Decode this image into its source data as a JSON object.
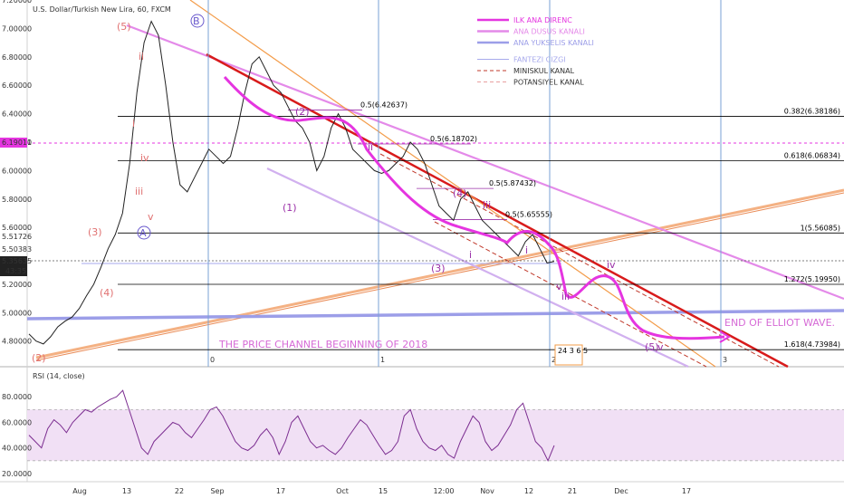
{
  "header": {
    "symbol_title": "U.S. Dollar/Turkish New Lira, 60, FXCM"
  },
  "rsi": {
    "label": "RSI (14, close)",
    "ticks": [
      "80.0000",
      "60.0000",
      "40.0000",
      "20.0000"
    ],
    "tick_values": [
      80,
      60,
      40,
      20
    ],
    "band": [
      30,
      70
    ],
    "range": [
      15,
      100
    ]
  },
  "legend": [
    {
      "label": "ILK ANA DIRENC",
      "color": "#e535e0"
    },
    {
      "label": "ANA DUSUS KANALI",
      "color": "#e48ae9"
    },
    {
      "label": "ANA YUKSELIS KANALI",
      "color": "#9c9ee8"
    },
    {
      "label": "FANTEZI CIZGI",
      "color": "#a7a9ec"
    },
    {
      "label": "MINISKUL KANAL",
      "color": "#c0392b"
    },
    {
      "label": "POTANSIYEL KANAL",
      "color": "#e8a0a0"
    }
  ],
  "annotations": {
    "channel_text": "THE PRICE CHANNEL BEGINNING OF 2018",
    "end_text": "END OF ELLIOT WAVE.",
    "mini_box": "24 3 6 5",
    "wave_labels": [
      "(5)",
      "B",
      "ii",
      "i",
      "iv",
      "iii",
      "v",
      "(3)",
      "A",
      "(4)",
      "(2)",
      "(1)",
      "(2)",
      "(3)",
      "i",
      "iii",
      "(4)",
      "iv",
      "(5)",
      "v",
      "ii",
      "v",
      "iii",
      "i"
    ]
  },
  "price_badges": {
    "current_a": "6.19011",
    "b1": "5.51726",
    "b2": "5.50383",
    "current": "5.35635",
    "countdown": "43:35"
  },
  "chart_data": {
    "type": "line",
    "symbol": "USDTRY",
    "interval": "60",
    "x_tick_labels": [
      "Aug",
      "13",
      "22",
      "Sep",
      "17",
      "Oct",
      "15",
      "12:00",
      "Nov",
      "12",
      "21",
      "Dec",
      "17"
    ],
    "y_ticks": [
      "7.20000",
      "7.00000",
      "6.80000",
      "6.60000",
      "6.40000",
      "6.20000",
      "6.00000",
      "5.80000",
      "5.60000",
      "5.20000",
      "5.00000",
      "4.80000"
    ],
    "y_tick_values": [
      7.2,
      7.0,
      6.8,
      6.6,
      6.4,
      6.2,
      6.0,
      5.8,
      5.6,
      5.2,
      5.0,
      4.8
    ],
    "ylim": [
      4.62,
      7.2
    ],
    "fib_levels": [
      {
        "label": "0.382(6.38186)",
        "value": 6.38186
      },
      {
        "label": "0.618(6.06834)",
        "value": 6.06834
      },
      {
        "label": "1(5.56085)",
        "value": 5.56085
      },
      {
        "label": "1.272(5.19950)",
        "value": 5.1995
      },
      {
        "label": "1.618(4.73984)",
        "value": 4.73984
      }
    ],
    "fib_labels_mid": [
      {
        "label": "0.5(6.42637)",
        "value": 6.42637
      },
      {
        "label": "0.5(6.18702)",
        "value": 6.18702
      },
      {
        "label": "0.5(5.87432)",
        "value": 5.87432
      },
      {
        "label": "0.5(5.65555)",
        "value": 5.65555
      }
    ],
    "vertical_labels": [
      "0",
      "1",
      "2",
      "3"
    ],
    "price_series": [
      4.85,
      4.8,
      4.78,
      4.83,
      4.9,
      4.94,
      4.97,
      5.03,
      5.12,
      5.2,
      5.32,
      5.45,
      5.55,
      5.7,
      6.05,
      6.55,
      6.9,
      7.05,
      6.95,
      6.6,
      6.2,
      5.9,
      5.85,
      5.95,
      6.05,
      6.15,
      6.1,
      6.05,
      6.1,
      6.3,
      6.55,
      6.75,
      6.8,
      6.7,
      6.6,
      6.55,
      6.45,
      6.35,
      6.3,
      6.2,
      6.0,
      6.1,
      6.3,
      6.4,
      6.3,
      6.15,
      6.1,
      6.05,
      6.0,
      5.98,
      6.0,
      6.05,
      6.1,
      6.2,
      6.15,
      6.05,
      5.9,
      5.75,
      5.7,
      5.65,
      5.8,
      5.85,
      5.75,
      5.65,
      5.6,
      5.55,
      5.5,
      5.45,
      5.4,
      5.5,
      5.55,
      5.45,
      5.35,
      5.36
    ],
    "rsi_series": [
      50,
      45,
      40,
      55,
      62,
      58,
      52,
      60,
      65,
      70,
      68,
      72,
      75,
      78,
      80,
      85,
      70,
      55,
      40,
      35,
      45,
      50,
      55,
      60,
      58,
      52,
      48,
      55,
      62,
      70,
      72,
      65,
      55,
      45,
      40,
      38,
      42,
      50,
      55,
      48,
      35,
      45,
      60,
      65,
      55,
      45,
      40,
      42,
      38,
      35,
      40,
      48,
      55,
      62,
      58,
      50,
      42,
      35,
      38,
      45,
      65,
      70,
      55,
      45,
      40,
      38,
      42,
      35,
      32,
      45,
      55,
      65,
      60,
      45,
      38,
      42,
      50,
      58,
      70,
      75,
      60,
      45,
      40,
      30,
      42
    ]
  }
}
